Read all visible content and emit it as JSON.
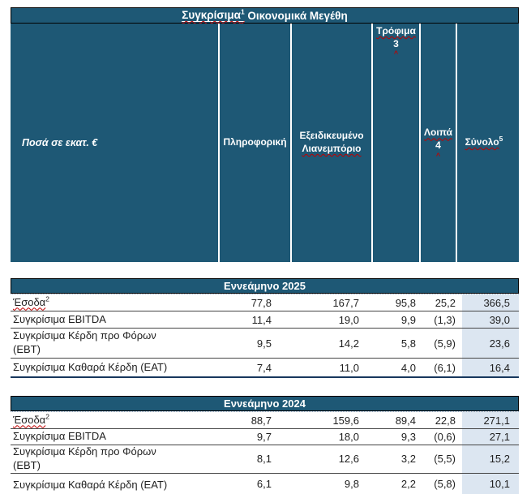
{
  "title": {
    "flagged_word": "Συγκρίσιμα",
    "sup": "1",
    "rest": " Οικονομικά Μεγέθη"
  },
  "colors": {
    "teal": "#1E5875",
    "light_blue": "#DCE6F1",
    "flag_red": "#C00000",
    "bottom_border": "#17375D"
  },
  "header": {
    "unit_label": "Ποσά σε εκατ. €",
    "col_informatics": "Πληροφορική",
    "col_retail_line1": "Εξειδικευμένο",
    "col_retail_line2": "Λιανεμπόριο",
    "col_food": "Τρόφιμα",
    "col_food_note": "3",
    "col_other": "Λοιπά",
    "col_other_note": "4",
    "col_total": "Σύνολο",
    "col_total_sup": "5",
    "caret": "^"
  },
  "sections": [
    {
      "title": "Εννεάμηνο 2025",
      "rows": [
        {
          "label": "Έσοδα",
          "sup": "2",
          "values": [
            "77,8",
            "167,7",
            "95,8",
            "25,2",
            "366,5"
          ]
        },
        {
          "label": "Συγκρίσιμα EBITDA",
          "values": [
            "11,4",
            "19,0",
            "9,9",
            "(1,3)",
            "39,0"
          ]
        },
        {
          "label": "Συγκρίσιμα Κέρδη προ Φόρων",
          "label2": "(EBT)",
          "values": [
            "9,5",
            "14,2",
            "5,8",
            "(5,9)",
            "23,6"
          ]
        },
        {
          "label": "Συγκρίσιμα Καθαρά Κέρδη (EAT)",
          "values": [
            "7,4",
            "11,0",
            "4,0",
            "(6,1)",
            "16,4"
          ]
        }
      ]
    },
    {
      "title": "Εννεάμηνο 2024",
      "rows": [
        {
          "label": "Έσοδα",
          "sup": "2",
          "values": [
            "88,7",
            "159,6",
            "89,4",
            "22,8",
            "271,1"
          ]
        },
        {
          "label": "Συγκρίσιμα EBITDA",
          "values": [
            "9,7",
            "18,0",
            "9,3",
            "(0,6)",
            "27,1"
          ]
        },
        {
          "label": "Συγκρίσιμα Κέρδη προ Φόρων",
          "label2": "(EBT)",
          "values": [
            "8,1",
            "12,6",
            "3,2",
            "(5,5)",
            "15,2"
          ]
        },
        {
          "label": "Συγκρίσιμα Καθαρά Κέρδη (EAT)",
          "values": [
            "6,1",
            "9,8",
            "2,2",
            "(5,8)",
            "10,1"
          ]
        }
      ]
    }
  ]
}
